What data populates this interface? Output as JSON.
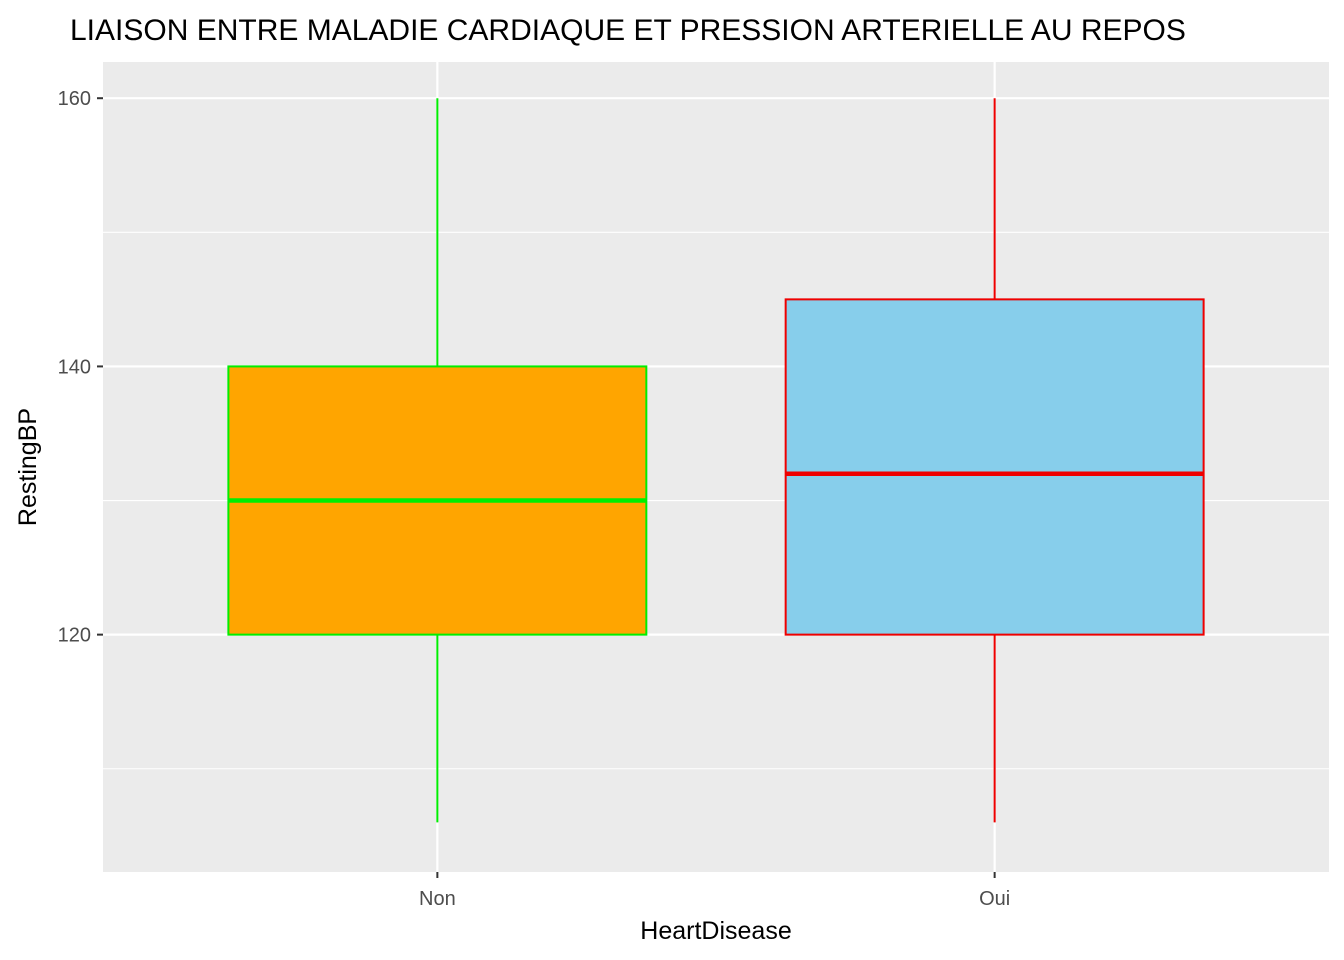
{
  "chart_data": {
    "type": "boxplot",
    "title": "LIAISON ENTRE MALADIE CARDIAQUE ET PRESSION ARTERIELLE AU REPOS",
    "xlabel": "HeartDisease",
    "ylabel": "RestingBP",
    "categories": [
      "Non",
      "Oui"
    ],
    "ylim": [
      102.3,
      162.7
    ],
    "y_ticks": [
      120,
      140,
      160
    ],
    "y_tick_labels": [
      "120",
      "140",
      "160"
    ],
    "grid": true,
    "legend": "none",
    "boxes": [
      {
        "category": "Non",
        "whisker_low": 106,
        "q1": 120,
        "median": 130,
        "q3": 140,
        "whisker_high": 160,
        "fill": "#FFA500",
        "stroke": "#00EE00"
      },
      {
        "category": "Oui",
        "whisker_low": 106,
        "q1": 120,
        "median": 132,
        "q3": 145,
        "whisker_high": 160,
        "fill": "#87CEEB",
        "stroke": "#EE0000"
      }
    ],
    "panel_background": "#EBEBEB",
    "grid_color": "#FFFFFF"
  }
}
